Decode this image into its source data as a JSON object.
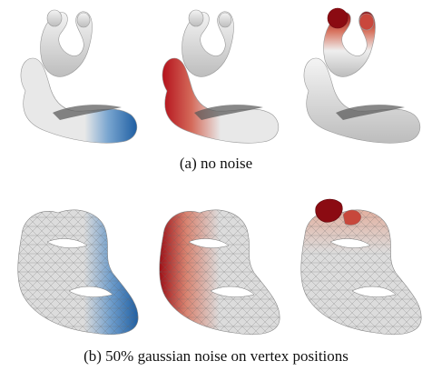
{
  "figure": {
    "row_a": {
      "caption": "(a) no noise",
      "panels": [
        {
          "highlight": "base-front",
          "color": "#1f5fa3"
        },
        {
          "highlight": "base-back",
          "color": "#b4111b"
        },
        {
          "highlight": "head",
          "color": "#8b0b12"
        }
      ]
    },
    "row_b": {
      "caption": "(b) 50% gaussian noise on vertex positions",
      "panels": [
        {
          "highlight": "base-front",
          "color": "#1f5fa3"
        },
        {
          "highlight": "base-back",
          "color": "#b4111b"
        },
        {
          "highlight": "head",
          "color": "#8b0b12"
        }
      ]
    }
  }
}
